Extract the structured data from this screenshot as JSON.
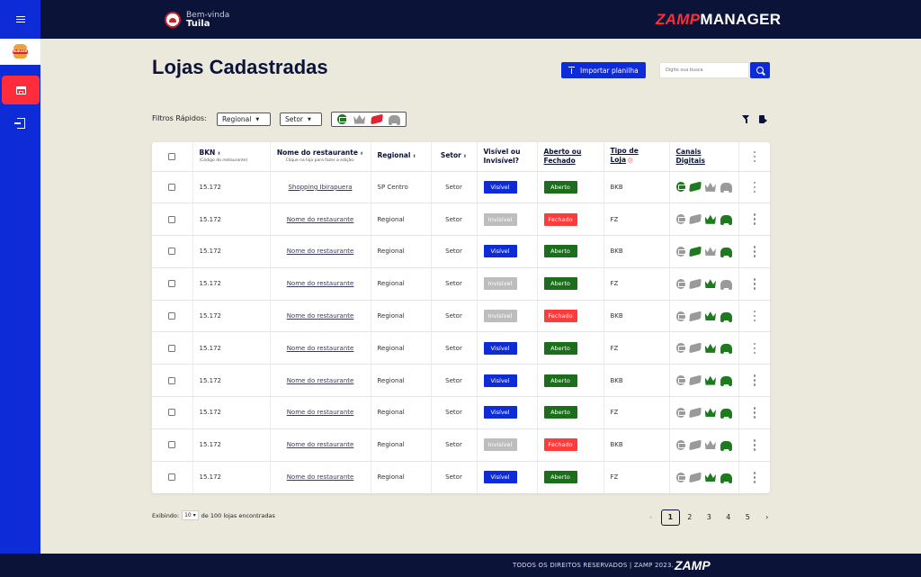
{
  "header": {
    "welcome_label": "Bem-vinda",
    "user_name": "Tuila",
    "brand_zamp": "ZAMP",
    "brand_manager": "MANAGER"
  },
  "sidebar": {
    "logo_text": "BURGER KING",
    "items": [
      {
        "name": "lojas",
        "icon": "store-icon",
        "active": true
      },
      {
        "name": "export",
        "icon": "export-icon",
        "active": false
      }
    ]
  },
  "page": {
    "title": "Lojas Cadastradas",
    "import_label": "Importar planilha",
    "search_placeholder": "Digite sua busca"
  },
  "filters": {
    "label": "Filtros Rápidos:",
    "regional": "Regional",
    "setor": "Setor",
    "channels": [
      "ifood-icon",
      "crown-icon",
      "rappi-icon",
      "moto-icon"
    ]
  },
  "table": {
    "headers": {
      "bkn": "BKN",
      "bkn_sub": "(Código do restaurante)",
      "nome": "Nome do restaurante",
      "nome_sub": "Clique na loja para fazer a edição.",
      "regional": "Regional",
      "setor": "Setor",
      "visivel": "Visível ou Invisível?",
      "aberto": "Aberto ou Fechado",
      "tipo": "Tipo de Loja",
      "canais": "Canais Digitais"
    },
    "rows": [
      {
        "bkn": "15.172",
        "nome": "Shopping Ibirapuera",
        "regional": "SP Centro",
        "setor": "Setor",
        "visivel": "Visível",
        "vis": true,
        "aberto": "Aberto",
        "open": true,
        "tipo": "BKB",
        "channels": [
          "green",
          "green",
          "gray",
          "gray"
        ]
      },
      {
        "bkn": "15.172",
        "nome": "Nome do restaurante",
        "regional": "Regional",
        "setor": "Setor",
        "visivel": "Invisível",
        "vis": false,
        "aberto": "Fechado",
        "open": false,
        "tipo": "FZ",
        "channels": [
          "gray",
          "gray",
          "green",
          "green"
        ]
      },
      {
        "bkn": "15.172",
        "nome": "Nome do restaurante",
        "regional": "Regional",
        "setor": "Setor",
        "visivel": "Visível",
        "vis": true,
        "aberto": "Aberto",
        "open": true,
        "tipo": "BKB",
        "channels": [
          "gray",
          "green",
          "gray",
          "green"
        ]
      },
      {
        "bkn": "15.172",
        "nome": "Nome do restaurante",
        "regional": "Regional",
        "setor": "Setor",
        "visivel": "Invisível",
        "vis": false,
        "aberto": "Aberto",
        "open": true,
        "tipo": "FZ",
        "channels": [
          "gray",
          "gray",
          "green",
          "gray"
        ]
      },
      {
        "bkn": "15.172",
        "nome": "Nome do restaurante",
        "regional": "Regional",
        "setor": "Setor",
        "visivel": "Invisível",
        "vis": false,
        "aberto": "Fechado",
        "open": false,
        "tipo": "BKB",
        "channels": [
          "gray",
          "gray",
          "green",
          "green"
        ]
      },
      {
        "bkn": "15.172",
        "nome": "Nome do restaurante",
        "regional": "Regional",
        "setor": "Setor",
        "visivel": "Visível",
        "vis": true,
        "aberto": "Aberto",
        "open": true,
        "tipo": "FZ",
        "channels": [
          "gray",
          "gray",
          "green",
          "green"
        ]
      },
      {
        "bkn": "15.172",
        "nome": "Nome do restaurante",
        "regional": "Regional",
        "setor": "Setor",
        "visivel": "Visível",
        "vis": true,
        "aberto": "Aberto",
        "open": true,
        "tipo": "BKB",
        "channels": [
          "gray",
          "gray",
          "green",
          "green"
        ]
      },
      {
        "bkn": "15.172",
        "nome": "Nome do restaurante",
        "regional": "Regional",
        "setor": "Setor",
        "visivel": "Visível",
        "vis": true,
        "aberto": "Aberto",
        "open": true,
        "tipo": "FZ",
        "channels": [
          "gray",
          "gray",
          "green",
          "green"
        ]
      },
      {
        "bkn": "15.172",
        "nome": "Nome do restaurante",
        "regional": "Regional",
        "setor": "Setor",
        "visivel": "Invisível",
        "vis": false,
        "aberto": "Fechado",
        "open": false,
        "tipo": "BKB",
        "channels": [
          "gray",
          "gray",
          "gray",
          "green"
        ]
      },
      {
        "bkn": "15.172",
        "nome": "Nome do restaurante",
        "regional": "Regional",
        "setor": "Setor",
        "visivel": "Visível",
        "vis": true,
        "aberto": "Aberto",
        "open": true,
        "tipo": "FZ",
        "channels": [
          "gray",
          "gray",
          "green",
          "green"
        ]
      }
    ]
  },
  "pagination": {
    "showing_prefix": "Exibindo:",
    "per_page": "10",
    "showing_suffix": "de 100 lojas encontradas",
    "pages": [
      "1",
      "2",
      "3",
      "4",
      "5"
    ],
    "current": "1",
    "prev": "‹",
    "next": "›"
  },
  "footer": {
    "text": "TODOS OS DIREITOS RESERVADOS | ZAMP 2023.",
    "logo": "ZAMP"
  },
  "colors": {
    "navy": "#0b1338",
    "blue": "#0e2bd8",
    "red": "#ff2d3b",
    "green": "#1c6e1c",
    "background": "#ebe8dc"
  }
}
